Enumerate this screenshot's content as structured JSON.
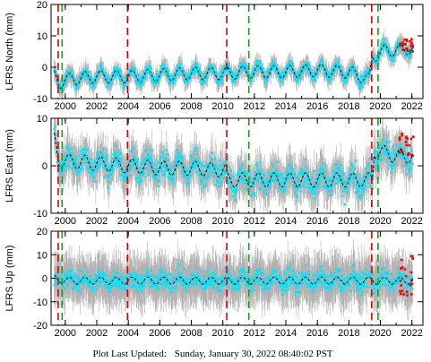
{
  "footer": {
    "label": "Plot Last Updated:",
    "value": "Sunday, January 30, 2022 08:40:02 PST"
  },
  "colors": {
    "data_points": "#00e5ff",
    "error_bars": "#b0b0b0",
    "model_line": "#000000",
    "recent_points": "#ff0000",
    "event_red": "#e00000",
    "event_green": "#00b000"
  },
  "chart_data": [
    {
      "type": "scatter",
      "ylabel": "LFRS North (mm)",
      "xlim": [
        1999.1,
        2022.7
      ],
      "ylim": [
        -10,
        20
      ],
      "yticks": [
        -10,
        0,
        10,
        20
      ],
      "xticks": [
        2000,
        2002,
        2004,
        2006,
        2008,
        2010,
        2012,
        2014,
        2016,
        2018,
        2020,
        2022
      ],
      "grid": false,
      "trend_points": [
        {
          "x": 1999.3,
          "y": -3
        },
        {
          "x": 1999.6,
          "y": -5
        },
        {
          "x": 2000,
          "y": -4
        },
        {
          "x": 2002,
          "y": -3
        },
        {
          "x": 2004,
          "y": -3
        },
        {
          "x": 2006,
          "y": -2.5
        },
        {
          "x": 2008,
          "y": -2
        },
        {
          "x": 2010,
          "y": -2
        },
        {
          "x": 2012,
          "y": -1.5
        },
        {
          "x": 2014,
          "y": -1.5
        },
        {
          "x": 2016,
          "y": -1
        },
        {
          "x": 2018,
          "y": -1.5
        },
        {
          "x": 2019.3,
          "y": -4
        },
        {
          "x": 2019.5,
          "y": 3
        },
        {
          "x": 2020,
          "y": 5
        },
        {
          "x": 2021,
          "y": 5.5
        },
        {
          "x": 2022,
          "y": 6
        }
      ],
      "seasonal_amplitude": 2,
      "scatter_spread": 2.5,
      "error_spread": 3,
      "recent_points": {
        "from": 2021.2,
        "to": 2022.1,
        "y_min": 5,
        "y_max": 9
      }
    },
    {
      "type": "scatter",
      "ylabel": "LFRS East (mm)",
      "xlim": [
        1999.1,
        2022.7
      ],
      "ylim": [
        -10,
        10
      ],
      "yticks": [
        -10,
        0,
        10
      ],
      "xticks": [
        2000,
        2002,
        2004,
        2006,
        2008,
        2010,
        2012,
        2014,
        2016,
        2018,
        2020,
        2022
      ],
      "grid": false,
      "trend_points": [
        {
          "x": 1999.3,
          "y": 5.5
        },
        {
          "x": 1999.6,
          "y": 1
        },
        {
          "x": 2000,
          "y": 1
        },
        {
          "x": 2002,
          "y": 0.5
        },
        {
          "x": 2004,
          "y": 0
        },
        {
          "x": 2006,
          "y": -0.5
        },
        {
          "x": 2008,
          "y": -0.5
        },
        {
          "x": 2010.2,
          "y": -1
        },
        {
          "x": 2010.3,
          "y": -3
        },
        {
          "x": 2012,
          "y": -3
        },
        {
          "x": 2014,
          "y": -3
        },
        {
          "x": 2016,
          "y": -3
        },
        {
          "x": 2018,
          "y": -3
        },
        {
          "x": 2019.5,
          "y": -3
        },
        {
          "x": 2019.6,
          "y": 3
        },
        {
          "x": 2020,
          "y": 3
        },
        {
          "x": 2021,
          "y": 2
        },
        {
          "x": 2022,
          "y": 2
        }
      ],
      "seasonal_amplitude": 1.5,
      "scatter_spread": 4,
      "error_spread": 4,
      "recent_points": {
        "from": 2021.2,
        "to": 2022.1,
        "y_min": 2,
        "y_max": 7
      }
    },
    {
      "type": "scatter",
      "ylabel": "LFRS Up (mm)",
      "xlim": [
        1999.1,
        2022.7
      ],
      "ylim": [
        -20,
        20
      ],
      "yticks": [
        -20,
        -10,
        0,
        10,
        20
      ],
      "xticks": [
        2000,
        2002,
        2004,
        2006,
        2008,
        2010,
        2012,
        2014,
        2016,
        2018,
        2020,
        2022
      ],
      "grid": false,
      "trend_points": [
        {
          "x": 1999.3,
          "y": 0
        },
        {
          "x": 2000,
          "y": -1
        },
        {
          "x": 2004,
          "y": -1
        },
        {
          "x": 2008,
          "y": -1
        },
        {
          "x": 2012,
          "y": -1
        },
        {
          "x": 2016,
          "y": -1
        },
        {
          "x": 2020,
          "y": -1
        },
        {
          "x": 2022,
          "y": -1
        }
      ],
      "seasonal_amplitude": 1.5,
      "scatter_spread": 6,
      "error_spread": 10,
      "recent_points": {
        "from": 2021.2,
        "to": 2022.1,
        "y_min": -8,
        "y_max": 10
      }
    }
  ],
  "event_lines": [
    {
      "x": 1999.55,
      "color": "red"
    },
    {
      "x": 1999.8,
      "color": "green"
    },
    {
      "x": 2003.95,
      "color": "red"
    },
    {
      "x": 2010.25,
      "color": "red"
    },
    {
      "x": 2011.65,
      "color": "green"
    },
    {
      "x": 2019.45,
      "color": "red"
    },
    {
      "x": 2019.85,
      "color": "green"
    }
  ]
}
